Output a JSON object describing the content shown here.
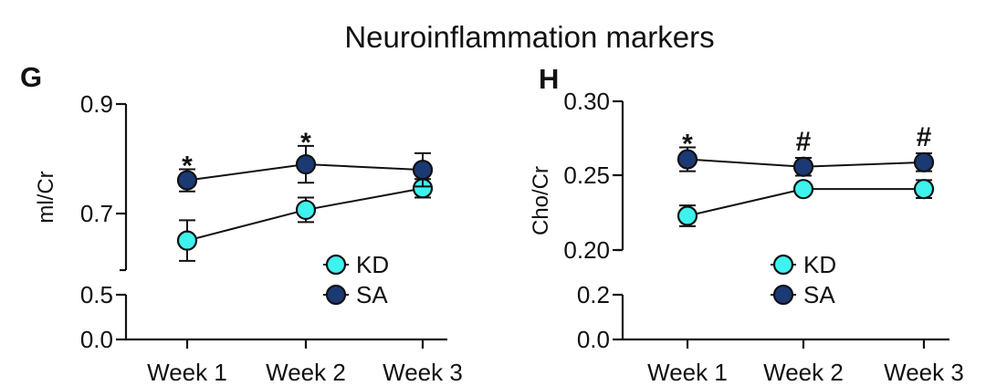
{
  "title": "Neuroinflammation markers",
  "colors": {
    "KD": "#3ef2ee",
    "SA": "#1b3a73",
    "axis": "#111111"
  },
  "chart_data": [
    {
      "type": "line",
      "panel": "G",
      "ylabel": "ml/Cr",
      "categories": [
        "Week 1",
        "Week 2",
        "Week 3"
      ],
      "yaxis": {
        "broken": true,
        "lower_ticks": [
          "0.0",
          "0.5"
        ],
        "lower_tick_values": [
          0.0,
          0.5
        ],
        "upper_ticks": [
          "0.7",
          "0.9"
        ],
        "upper_tick_values": [
          0.7,
          0.9
        ],
        "ylim_upper": [
          0.63,
          0.9
        ]
      },
      "series": [
        {
          "name": "KD",
          "values": [
            0.678,
            0.728,
            0.763
          ],
          "error": [
            0.033,
            0.02,
            0.015
          ]
        },
        {
          "name": "SA",
          "values": [
            0.776,
            0.802,
            0.793
          ],
          "error": [
            0.018,
            0.03,
            0.027
          ]
        }
      ],
      "annotations": [
        {
          "category": "Week 1",
          "text": "*"
        },
        {
          "category": "Week 2",
          "text": "*"
        }
      ],
      "legend": {
        "placement": "lower-right",
        "entries": [
          "KD",
          "SA"
        ]
      }
    },
    {
      "type": "line",
      "panel": "H",
      "ylabel": "Cho/Cr",
      "categories": [
        "Week 1",
        "Week 2",
        "Week 3"
      ],
      "yaxis": {
        "broken": true,
        "lower_ticks": [
          "0.0",
          "0.2"
        ],
        "lower_tick_values": [
          0.0,
          0.2
        ],
        "upper_ticks": [
          "0.20",
          "0.25",
          "0.30"
        ],
        "upper_tick_values": [
          0.2,
          0.25,
          0.3
        ],
        "ylim_upper": [
          0.2,
          0.3
        ]
      },
      "series": [
        {
          "name": "KD",
          "values": [
            0.223,
            0.241,
            0.241
          ],
          "error": [
            0.007,
            0.003,
            0.006
          ]
        },
        {
          "name": "SA",
          "values": [
            0.261,
            0.256,
            0.259
          ],
          "error": [
            0.008,
            0.006,
            0.006
          ]
        }
      ],
      "annotations": [
        {
          "category": "Week 1",
          "text": "*"
        },
        {
          "category": "Week 2",
          "text": "#"
        },
        {
          "category": "Week 3",
          "text": "#"
        }
      ],
      "legend": {
        "placement": "lower-right",
        "entries": [
          "KD",
          "SA"
        ]
      }
    }
  ]
}
